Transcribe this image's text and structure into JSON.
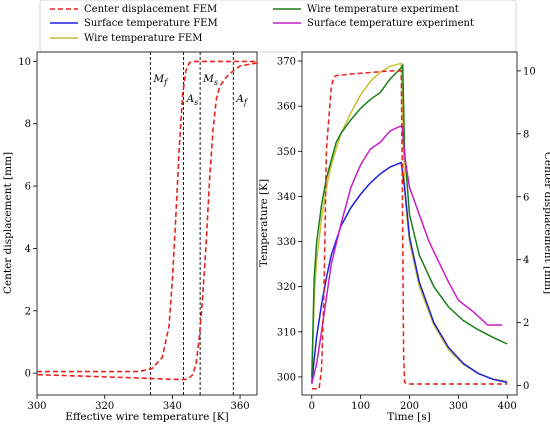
{
  "legend": {
    "entries": [
      {
        "label": "Center displacement FEM",
        "color": "#e8211b",
        "dash": true
      },
      {
        "label": "Surface temperature FEM",
        "color": "#1f1fe0",
        "dash": false
      },
      {
        "label": "Wire temperature FEM",
        "color": "#c8c032",
        "dash": false
      },
      {
        "label": "Wire temperature experiment",
        "color": "#1a7f1a",
        "dash": false
      },
      {
        "label": "Surface temperature experiment",
        "color": "#c71fc7",
        "dash": false
      }
    ]
  },
  "chart_data": [
    {
      "type": "line",
      "xlabel": "Effective wire temperature [K]",
      "ylabel": "Center displacement [mm]",
      "xlim": [
        300,
        365
      ],
      "ylim": [
        -0.7,
        10.3
      ],
      "xticks": [
        300,
        320,
        340,
        360
      ],
      "yticks": [
        0,
        2,
        4,
        6,
        8,
        10
      ],
      "annotations": [
        {
          "text": "M",
          "sub": "f",
          "x": 333.5
        },
        {
          "text": "A",
          "sub": "s",
          "x": 343.3
        },
        {
          "text": "M",
          "sub": "s",
          "x": 348.2
        },
        {
          "text": "A",
          "sub": "f",
          "x": 358.0
        }
      ],
      "series": [
        {
          "name": "Center displacement FEM",
          "color": "#e8211b",
          "x": [
            300,
            310,
            320,
            330,
            334,
            337,
            339,
            340,
            341,
            342,
            343,
            344,
            345,
            346,
            348,
            352,
            358,
            365
          ],
          "y": [
            0.05,
            0.05,
            0.05,
            0.05,
            0.15,
            0.5,
            1.5,
            3.0,
            5.0,
            7.2,
            8.9,
            9.7,
            9.95,
            10.0,
            10.0,
            10.0,
            10.0,
            10.0
          ]
        },
        {
          "name": "Center displacement FEM",
          "color": "#e8211b",
          "x": [
            365,
            360,
            358,
            356,
            354,
            353,
            352,
            351,
            350,
            349,
            348,
            347,
            346,
            345,
            344,
            340,
            330,
            315,
            300
          ],
          "y": [
            9.95,
            9.85,
            9.7,
            9.5,
            9.2,
            8.8,
            7.8,
            6.2,
            4.2,
            2.5,
            1.2,
            0.3,
            -0.05,
            -0.15,
            -0.2,
            -0.2,
            -0.15,
            -0.1,
            -0.05
          ]
        }
      ]
    },
    {
      "type": "line",
      "xlabel": "Time [s]",
      "ylabel": "Temperature [K]",
      "ylabel_right": "Center displacement [mm]",
      "xlim": [
        -20,
        420
      ],
      "ylim": [
        296,
        372
      ],
      "ylim_right": [
        -0.3,
        10.6
      ],
      "xticks": [
        0,
        100,
        200,
        300,
        400
      ],
      "yticks": [
        300,
        310,
        320,
        330,
        340,
        350,
        360,
        370
      ],
      "yticks_right": [
        0,
        2,
        4,
        6,
        8,
        10
      ],
      "series": [
        {
          "name": "Wire temperature FEM",
          "color": "#c8c032",
          "x": [
            0,
            5,
            10,
            20,
            30,
            40,
            60,
            80,
            100,
            120,
            140,
            160,
            183,
            190,
            195,
            200,
            220,
            250,
            280,
            310,
            340,
            370,
            400
          ],
          "y": [
            298.5,
            318,
            326,
            335,
            342,
            347,
            354,
            358.5,
            362.5,
            365.5,
            367.5,
            368.8,
            369.5,
            342,
            335,
            330,
            320,
            311.5,
            306,
            302.8,
            300.8,
            299.6,
            299
          ],
          "axis": "left"
        },
        {
          "name": "Surface temperature FEM",
          "color": "#1f1fe0",
          "x": [
            0,
            5,
            10,
            20,
            30,
            40,
            60,
            80,
            100,
            120,
            140,
            160,
            183,
            190,
            195,
            200,
            220,
            250,
            280,
            310,
            340,
            370,
            400
          ],
          "y": [
            298.5,
            304,
            309,
            316,
            322,
            327,
            333.5,
            337.5,
            340.5,
            343,
            345,
            346.5,
            347.5,
            342,
            336.5,
            331,
            321,
            312,
            306.5,
            303,
            300.8,
            299.5,
            298.8
          ],
          "axis": "left"
        },
        {
          "name": "Wire temperature experiment",
          "color": "#1a7f1a",
          "x": [
            0,
            5,
            10,
            20,
            30,
            40,
            50,
            60,
            80,
            100,
            120,
            140,
            160,
            183,
            186,
            190,
            200,
            220,
            250,
            280,
            310,
            340,
            370,
            400
          ],
          "y": [
            300,
            322,
            330,
            338,
            344,
            348,
            352,
            354,
            357,
            359.5,
            361.5,
            363,
            366,
            368.5,
            369,
            350,
            336,
            327,
            320,
            315.5,
            312.5,
            310.5,
            308.8,
            307.3
          ],
          "axis": "left"
        },
        {
          "name": "Surface temperature experiment",
          "color": "#c71fc7",
          "x": [
            0,
            10,
            20,
            40,
            60,
            80,
            100,
            120,
            140,
            160,
            180,
            185,
            190,
            200,
            220,
            240,
            260,
            280,
            300,
            330,
            360,
            390
          ],
          "y": [
            298.5,
            303,
            310,
            325,
            334,
            342,
            347,
            350.5,
            352,
            354.5,
            355.5,
            355.6,
            349,
            342,
            336,
            330,
            325.5,
            321,
            317,
            314.5,
            311.5,
            311.5
          ],
          "axis": "left"
        },
        {
          "name": "Center displacement FEM",
          "color": "#e8211b",
          "x": [
            0,
            15,
            20,
            25,
            30,
            40,
            45,
            50,
            80,
            120,
            160,
            183,
            185,
            188,
            190,
            195,
            250,
            320,
            400
          ],
          "y": [
            -0.1,
            -0.1,
            0.5,
            3,
            7.5,
            9.5,
            9.8,
            9.85,
            9.9,
            9.95,
            10.0,
            10.0,
            7,
            1,
            0.1,
            0.05,
            0.05,
            0.05,
            0.05
          ],
          "axis": "right"
        }
      ]
    }
  ]
}
